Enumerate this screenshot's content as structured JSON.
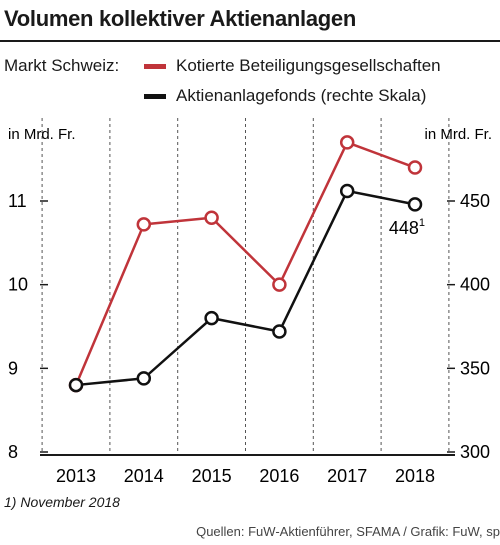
{
  "title": "Volumen kollektiver Aktienanlagen",
  "market_label": "Markt Schweiz:",
  "legend": {
    "red": "Kotierte Beteiligungsgesellschaften",
    "black": "Aktienanlagefonds (rechte Skala)"
  },
  "colors": {
    "red": "#c0343a",
    "black": "#111111",
    "grid": "#555555"
  },
  "footnote": "1) November 2018",
  "sources": "Quellen: FuW-Aktienführer, SFAMA / Grafik: FuW, sp",
  "chart_data": {
    "type": "line",
    "x": [
      "2013",
      "2014",
      "2015",
      "2016",
      "2017",
      "2018"
    ],
    "left_axis": {
      "unit": "in Mrd. Fr.",
      "ticks": [
        "8",
        "9",
        "10",
        "11"
      ],
      "ylim": [
        8,
        12
      ]
    },
    "right_axis": {
      "unit": "in Mrd. Fr.",
      "ticks": [
        "300",
        "350",
        "400",
        "450"
      ],
      "ylim": [
        300,
        520
      ]
    },
    "series": [
      {
        "name": "Kotierte Beteiligungsgesellschaften",
        "axis": "left",
        "color": "#c0343a",
        "values": [
          8.8,
          10.72,
          10.8,
          10.0,
          11.7,
          11.4
        ]
      },
      {
        "name": "Aktienanlagefonds (rechte Skala)",
        "axis": "right",
        "color": "#111111",
        "values": [
          340,
          344,
          380,
          372,
          456,
          448
        ]
      }
    ],
    "annotation": {
      "text": "448",
      "superscript": "1"
    },
    "grid": "vertical dashed"
  }
}
